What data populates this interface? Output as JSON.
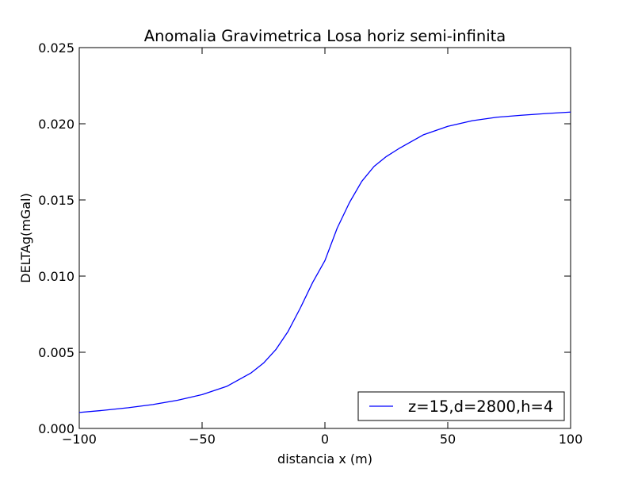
{
  "chart_data": {
    "type": "line",
    "title": "Anomalia Gravimetrica Losa horiz semi-infinita",
    "xlabel": "distancia x (m)",
    "ylabel": "DELTAg(mGal)",
    "xlim": [
      -100,
      100
    ],
    "ylim": [
      0.0,
      0.025
    ],
    "x_ticks": [
      -100,
      -50,
      0,
      50,
      100
    ],
    "x_tick_labels": [
      "−100",
      "−50",
      "0",
      "50",
      "100"
    ],
    "y_ticks": [
      0.0,
      0.005,
      0.01,
      0.015,
      0.02,
      0.025
    ],
    "y_tick_labels": [
      "0.000",
      "0.005",
      "0.010",
      "0.015",
      "0.020",
      "0.025"
    ],
    "grid": false,
    "legend_position": "lower-right",
    "series": [
      {
        "name": "z=15,d=2800,h=4",
        "color": "#0000ff",
        "x": [
          -100,
          -90,
          -80,
          -70,
          -60,
          -50,
          -40,
          -30,
          -25,
          -20,
          -15,
          -10,
          -5,
          0,
          5,
          10,
          15,
          20,
          25,
          30,
          40,
          50,
          60,
          70,
          80,
          90,
          100
        ],
        "y": [
          0.00105,
          0.00119,
          0.00136,
          0.00157,
          0.00185,
          0.00222,
          0.00276,
          0.00365,
          0.00429,
          0.00517,
          0.00637,
          0.00791,
          0.00958,
          0.01102,
          0.01315,
          0.01483,
          0.01622,
          0.0172,
          0.01785,
          0.01836,
          0.01927,
          0.01983,
          0.0202,
          0.02043,
          0.02056,
          0.02067,
          0.02077
        ]
      }
    ]
  }
}
